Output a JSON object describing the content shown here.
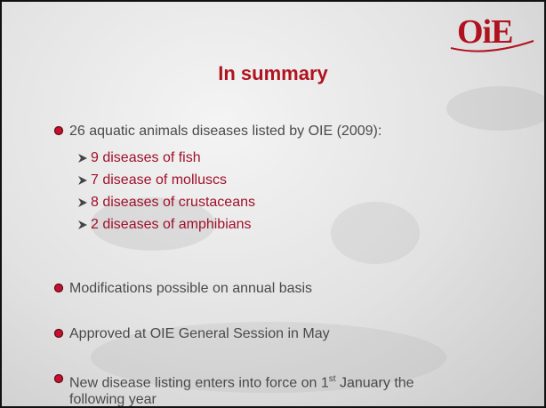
{
  "logo": "OiE",
  "title": "In summary",
  "bullets": [
    {
      "text": "26 aquatic animals diseases listed by OIE (2009):",
      "sub": [
        "9 diseases of fish",
        "7 disease of molluscs",
        "8 diseases of crustaceans",
        "2 diseases of amphibians"
      ]
    },
    {
      "text": "Modifications possible on annual basis"
    },
    {
      "text": "Approved at OIE General Session in May"
    },
    {
      "text_before": "New disease listing enters into force on 1",
      "superscript": "st",
      "text_after": " January the following year"
    }
  ]
}
